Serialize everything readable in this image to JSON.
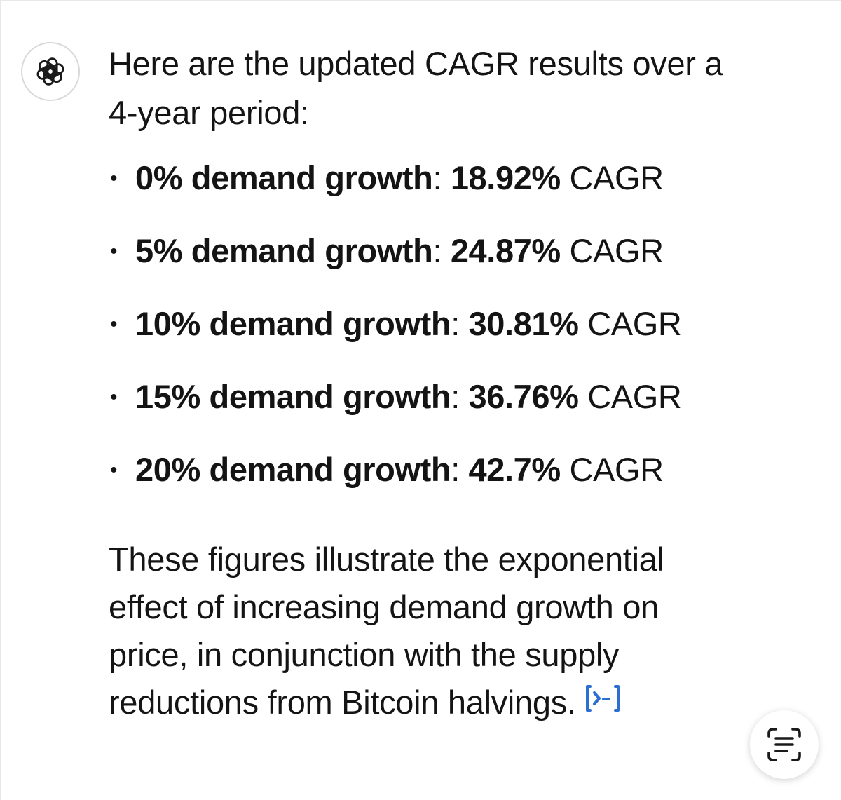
{
  "assistant": {
    "avatar_icon": "openai-logo-icon"
  },
  "message": {
    "intro": "Here are the updated CAGR results over a 4-year period:",
    "results": [
      {
        "label": "0% demand growth",
        "value": "18.92%",
        "unit": "CAGR"
      },
      {
        "label": "5% demand growth",
        "value": "24.87%",
        "unit": "CAGR"
      },
      {
        "label": "10% demand growth",
        "value": "30.81%",
        "unit": "CAGR"
      },
      {
        "label": "15% demand growth",
        "value": "36.76%",
        "unit": "CAGR"
      },
      {
        "label": "20% demand growth",
        "value": "42.7%",
        "unit": "CAGR"
      }
    ],
    "summary": "These figures illustrate the exponential effect of increasing demand growth on price, in conjunction with the supply reductions from Bitcoin halvings.",
    "code_link_icon": "code-interpreter-icon",
    "code_link_color": "#2c6fd1"
  },
  "overlay": {
    "scan_text_icon": "live-text-scan-icon"
  }
}
